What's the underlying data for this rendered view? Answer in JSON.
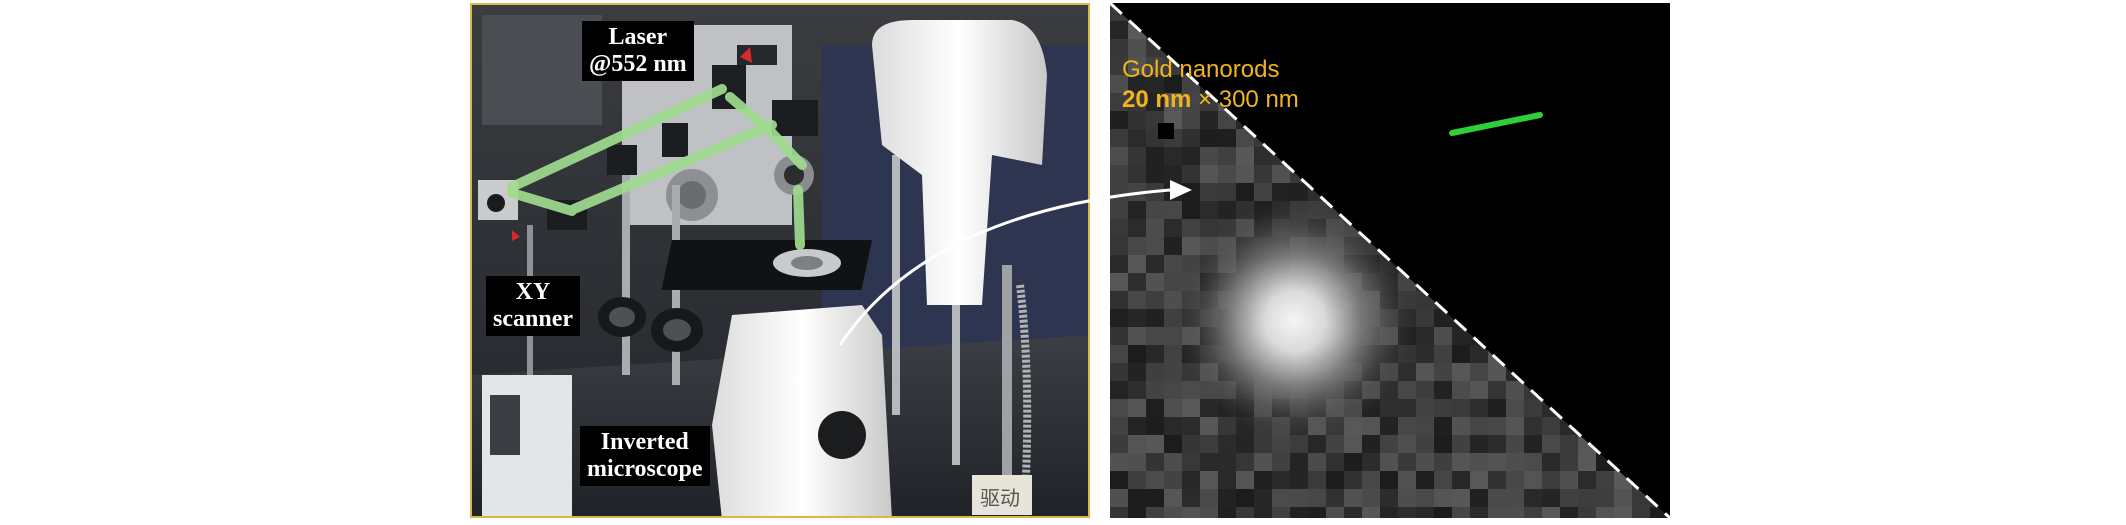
{
  "photo": {
    "labels": {
      "laser_line1": "Laser",
      "laser_line2": "@552 nm",
      "xy_line1": "XY",
      "xy_line2": "scanner",
      "microscope_line1": "Inverted",
      "microscope_line2": "microscope"
    },
    "chinese_sticker": "驱动"
  },
  "nanorods": {
    "caption_line1": "Gold nanorods",
    "caption_bold": "20 nm",
    "caption_rest": " × 300 nm"
  },
  "colors": {
    "beam": "#9fdc8e",
    "caption": "#f2b31f",
    "frame": "#d9b84a",
    "rod": "#2fcf3a"
  }
}
